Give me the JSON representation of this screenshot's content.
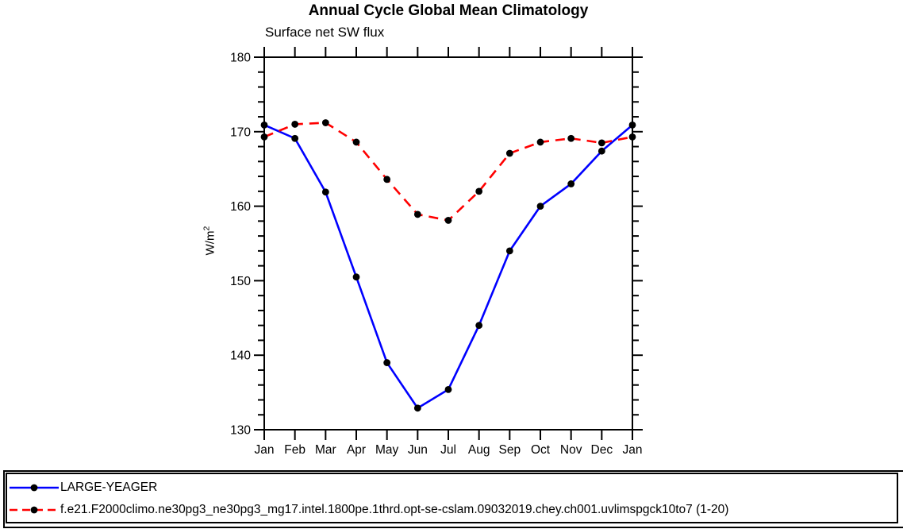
{
  "chart_data": {
    "type": "line",
    "title": "Annual Cycle Global Mean Climatology",
    "subtitle": "Surface net SW flux",
    "xlabel": "",
    "ylabel": "W/m^2",
    "ylabel_base": "W/m",
    "ylabel_sup": "2",
    "categories": [
      "Jan",
      "Feb",
      "Mar",
      "Apr",
      "May",
      "Jun",
      "Jul",
      "Aug",
      "Sep",
      "Oct",
      "Nov",
      "Dec",
      "Jan"
    ],
    "ylim": [
      130,
      180
    ],
    "ytick_major": [
      130,
      140,
      150,
      160,
      170,
      180
    ],
    "ytick_minor_step": 2,
    "grid": false,
    "legend_position": "bottom-box",
    "axis_color": "#000000",
    "series": [
      {
        "name": "LARGE-YEAGER",
        "color": "#0000ff",
        "line_style": "solid",
        "marker": "circle",
        "marker_color": "#000000",
        "values": [
          170.9,
          169.1,
          161.9,
          150.5,
          139.0,
          132.9,
          135.4,
          144.0,
          154.0,
          160.0,
          163.0,
          167.4,
          170.9
        ]
      },
      {
        "name": "f.e21.F2000climo.ne30pg3_ne30pg3_mg17.intel.1800pe.1thrd.opt-se-cslam.09032019.chey.ch001.uvlimspgck10to7 (1-20)",
        "color": "#ff0000",
        "line_style": "dashed",
        "marker": "circle",
        "marker_color": "#000000",
        "values": [
          169.3,
          171.0,
          171.2,
          168.6,
          163.6,
          158.9,
          158.1,
          162.0,
          167.1,
          168.6,
          169.1,
          168.5,
          169.3
        ]
      }
    ]
  }
}
